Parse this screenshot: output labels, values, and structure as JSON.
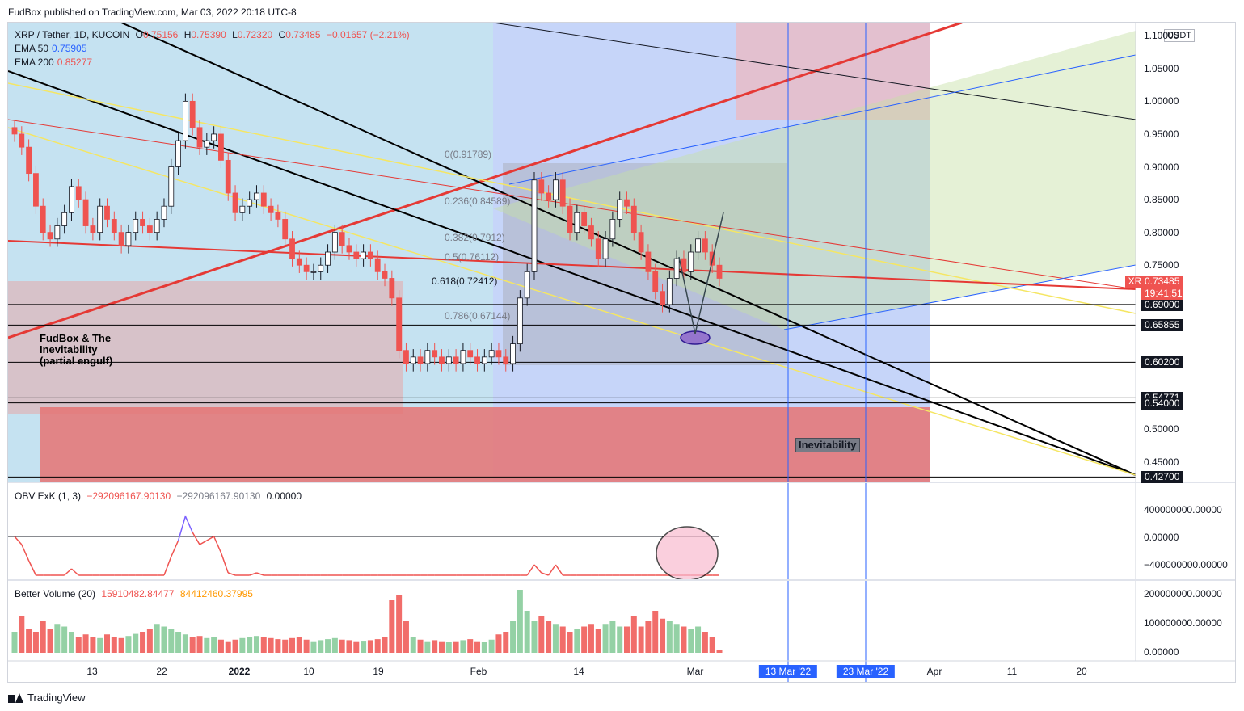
{
  "header": {
    "published": "FudBox published on TradingView.com, Mar 03, 2022 20:18 UTC-8"
  },
  "footer": {
    "brand": "TradingView"
  },
  "symbol": {
    "name": "XRP / Tether, 1D, KUCOIN",
    "o_label": "O",
    "o": "0.75156",
    "h_label": "H",
    "h": "0.75390",
    "l_label": "L",
    "l": "0.72320",
    "c_label": "C",
    "c": "0.73485",
    "change": "−0.01657 (−2.21%)",
    "ticker_tag": "XRPUSDT",
    "last_price": "0.73485",
    "countdown": "19:41:51",
    "currency": "USDT"
  },
  "indicators": {
    "ema50_label": "EMA 50",
    "ema50": "0.75905",
    "ema200_label": "EMA 200",
    "ema200": "0.85277",
    "obv_label": "OBV ExK (1, 3)",
    "obv_v1": "−292096167.90130",
    "obv_v2": "−292096167.90130",
    "obv_v3": "0.00000",
    "vol_label": "Better Volume (20)",
    "vol_v1": "15910482.84477",
    "vol_v2": "84412460.37995"
  },
  "annotations": {
    "fud_line1": "FudBox & The",
    "fud_line2": "Inevitability",
    "fud_line3": "(partial engulf)",
    "inevitability": "Inevitability"
  },
  "fib_labels": [
    {
      "text": "0(0.91789)"
    },
    {
      "text": "0.236(0.84589)"
    },
    {
      "text": "0.382(0.7912)"
    },
    {
      "text": "0.5(0.76112)"
    },
    {
      "text": "0.618(0.72412)"
    },
    {
      "text": "0.786(0.67144)"
    }
  ],
  "colors": {
    "up": "#26a69a",
    "down": "#ef5350",
    "red_line": "#e53935",
    "blue": "#2962ff",
    "yellow": "#f5e663",
    "black": "#000000",
    "obv_up": "#7b61ff",
    "obv_down": "#ef5350"
  },
  "chart_data": {
    "type": "candlestick",
    "title": "XRP / Tether, 1D, KUCOIN",
    "price_axis": [
      "1.10000",
      "1.05000",
      "1.00000",
      "0.95000",
      "0.90000",
      "0.85000",
      "0.80000",
      "0.75000",
      "0.70000",
      "0.50000",
      "0.45000"
    ],
    "price_tags": [
      {
        "text": "0.69000",
        "y": 0.69
      },
      {
        "text": "0.65855",
        "y": 0.65855
      },
      {
        "text": "0.60200",
        "y": 0.602
      },
      {
        "text": "0.54771",
        "y": 0.54771
      },
      {
        "text": "0.54000",
        "y": 0.54
      },
      {
        "text": "0.42700",
        "y": 0.427
      }
    ],
    "obv_axis": [
      "400000000.00000",
      "0.00000",
      "−400000000.00000"
    ],
    "vol_axis": [
      "200000000.00000",
      "100000000.00000",
      "0.00000"
    ],
    "time_axis": [
      "13",
      "22",
      "2022",
      "10",
      "19",
      "Feb",
      "14",
      "Mar",
      "Apr",
      "11",
      "20"
    ],
    "date_flags": [
      "13 Mar '22",
      "23 Mar '22"
    ],
    "ylim": [
      0.42,
      1.12
    ],
    "closes": [
      0.95,
      0.93,
      0.89,
      0.84,
      0.8,
      0.79,
      0.81,
      0.83,
      0.87,
      0.85,
      0.81,
      0.8,
      0.84,
      0.82,
      0.8,
      0.78,
      0.8,
      0.82,
      0.81,
      0.8,
      0.82,
      0.84,
      0.9,
      0.94,
      1.0,
      0.96,
      0.93,
      0.94,
      0.95,
      0.91,
      0.86,
      0.83,
      0.84,
      0.85,
      0.86,
      0.84,
      0.83,
      0.82,
      0.79,
      0.76,
      0.75,
      0.74,
      0.74,
      0.75,
      0.77,
      0.8,
      0.78,
      0.77,
      0.76,
      0.77,
      0.76,
      0.74,
      0.73,
      0.7,
      0.62,
      0.6,
      0.61,
      0.6,
      0.62,
      0.61,
      0.6,
      0.61,
      0.6,
      0.62,
      0.61,
      0.6,
      0.61,
      0.62,
      0.61,
      0.6,
      0.63,
      0.7,
      0.74,
      0.88,
      0.86,
      0.85,
      0.88,
      0.84,
      0.8,
      0.83,
      0.81,
      0.79,
      0.76,
      0.79,
      0.82,
      0.85,
      0.84,
      0.8,
      0.77,
      0.74,
      0.71,
      0.69,
      0.73,
      0.76,
      0.74,
      0.77,
      0.79,
      0.77,
      0.75,
      0.73
    ],
    "volumes": [
      40,
      70,
      45,
      40,
      60,
      45,
      55,
      50,
      40,
      30,
      35,
      30,
      28,
      35,
      30,
      28,
      32,
      36,
      40,
      45,
      55,
      50,
      45,
      40,
      35,
      30,
      32,
      28,
      30,
      25,
      22,
      25,
      28,
      30,
      32,
      30,
      28,
      26,
      25,
      28,
      30,
      25,
      22,
      24,
      26,
      28,
      25,
      24,
      22,
      23,
      24,
      26,
      30,
      100,
      110,
      60,
      30,
      25,
      22,
      24,
      22,
      20,
      22,
      24,
      26,
      22,
      20,
      25,
      35,
      40,
      60,
      120,
      80,
      60,
      70,
      60,
      55,
      50,
      40,
      45,
      50,
      55,
      45,
      55,
      60,
      50,
      50,
      70,
      50,
      60,
      80,
      65,
      60,
      55,
      50,
      45,
      50,
      40,
      30,
      5
    ]
  }
}
